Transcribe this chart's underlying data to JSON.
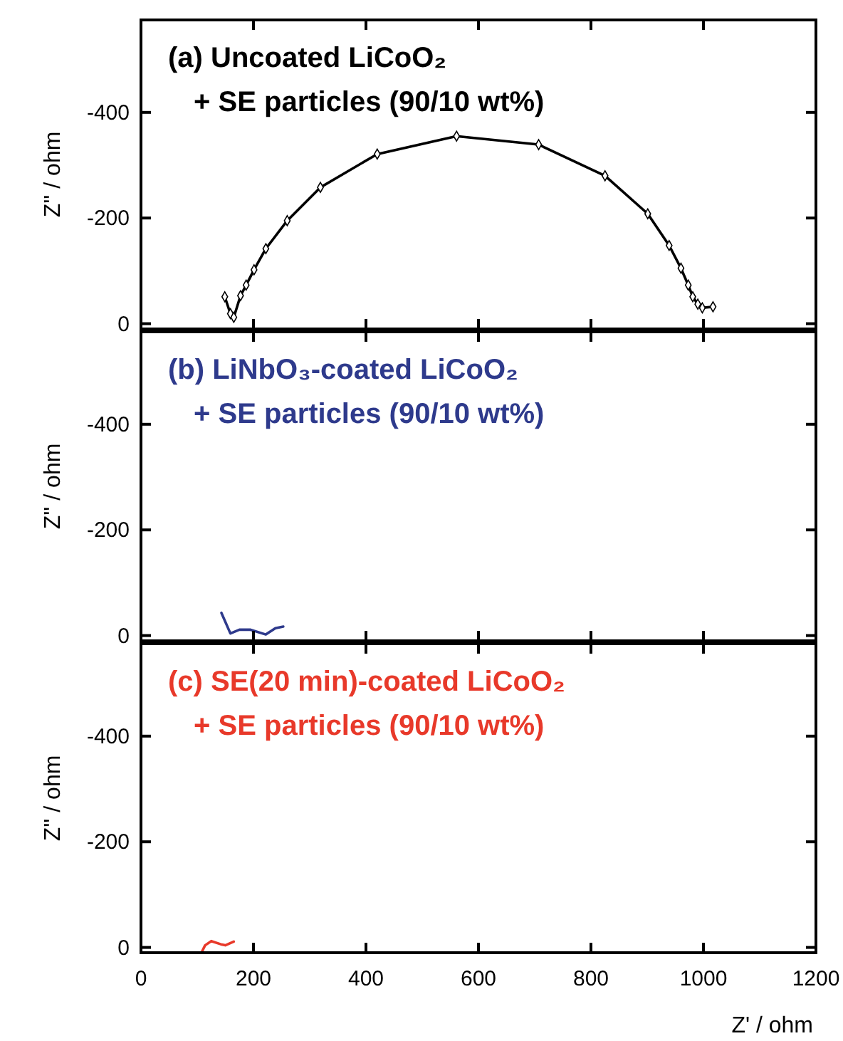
{
  "chart_data": [
    {
      "type": "line",
      "title": "(a) Uncoated LiCoO₂",
      "subtitle": "+ SE particles (90/10 wt%)",
      "ylabel": "Z'' / ohm",
      "marker": "diamond",
      "tick_labels": "y",
      "xlim": [
        0,
        1200
      ],
      "xticks": [
        0,
        200,
        400,
        600,
        800,
        1000,
        1200
      ],
      "ylim": [
        10,
        -575
      ],
      "yticks": [
        0,
        -200,
        -400
      ],
      "series": [
        {
          "color": "#000000",
          "x": [
            149,
            159,
            165,
            177,
            187,
            201,
            222,
            260,
            319,
            420,
            561,
            707,
            825,
            901,
            939,
            960,
            973,
            981,
            990,
            998,
            1017
          ],
          "values": [
            -51,
            -19,
            -12,
            -53,
            -73,
            -102,
            -142,
            -195,
            -258,
            -321,
            -355,
            -339,
            -280,
            -208,
            -148,
            -105,
            -73,
            -51,
            -37,
            -30,
            -32
          ]
        }
      ]
    },
    {
      "type": "line",
      "title": "(b) LiNbO₃-coated LiCoO₂",
      "subtitle": "+ SE particles (90/10 wt%)",
      "ylabel": "Z'' / ohm",
      "tick_labels": "y",
      "xlim": [
        0,
        1200
      ],
      "xticks": [
        0,
        200,
        400,
        600,
        800,
        1000,
        1200
      ],
      "ylim": [
        10,
        -575
      ],
      "yticks": [
        0,
        -200,
        -400
      ],
      "series": [
        {
          "color": "#2e3a8c",
          "x": [
            143,
            159,
            175,
            195,
            222,
            239,
            253
          ],
          "values": [
            -43,
            -4,
            -11,
            -11,
            -2,
            -14,
            -17
          ]
        }
      ]
    },
    {
      "type": "line",
      "title": "(c) SE(20 min)-coated LiCoO₂",
      "subtitle": "+ SE particles (90/10 wt%)",
      "xlabel": "Z' / ohm",
      "ylabel": "Z'' / ohm",
      "xlim": [
        0,
        1200
      ],
      "xticks": [
        0,
        200,
        400,
        600,
        800,
        1000,
        1200
      ],
      "ylim": [
        10,
        -575
      ],
      "yticks": [
        0,
        -200,
        -400
      ],
      "series": [
        {
          "color": "#e8392a",
          "x": [
            108,
            114,
            125,
            142,
            150,
            165
          ],
          "values": [
            9,
            -4,
            -12,
            -6,
            -4,
            -11
          ]
        }
      ]
    }
  ]
}
